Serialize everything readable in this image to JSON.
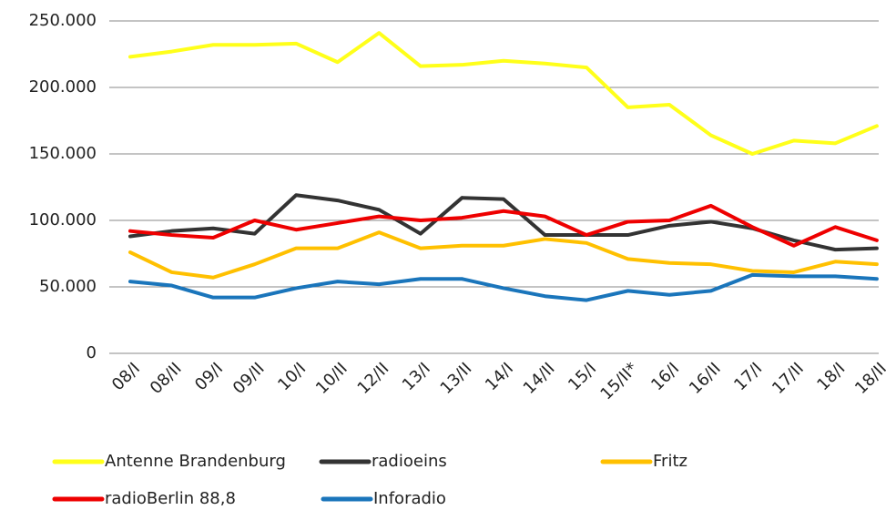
{
  "chart_data": {
    "type": "line",
    "categories": [
      "08/I",
      "08/II",
      "09/I",
      "09/II",
      "10/I",
      "10/II",
      "12/II",
      "13/I",
      "13/II",
      "14/I",
      "14/II",
      "15/I",
      "15/II*",
      "16/I",
      "16/II",
      "17/I",
      "17/II",
      "18/I",
      "18/II"
    ],
    "series": [
      {
        "name": "Antenne Brandenburg",
        "color": "#ffff1a",
        "values": [
          223000,
          227000,
          232000,
          232000,
          233000,
          219000,
          241000,
          216000,
          217000,
          220000,
          218000,
          215000,
          185000,
          187000,
          164000,
          150000,
          160000,
          158000,
          171000
        ]
      },
      {
        "name": "radioeins",
        "color": "#333333",
        "values": [
          88000,
          92000,
          94000,
          90000,
          119000,
          115000,
          108000,
          90000,
          117000,
          116000,
          89000,
          89000,
          89000,
          96000,
          99000,
          94000,
          85000,
          78000,
          79000
        ]
      },
      {
        "name": "Fritz",
        "color": "#ffc000",
        "values": [
          76000,
          61000,
          57000,
          67000,
          79000,
          79000,
          91000,
          79000,
          81000,
          81000,
          86000,
          83000,
          71000,
          68000,
          67000,
          62000,
          61000,
          69000,
          67000
        ]
      },
      {
        "name": "radioBerlin 88,8",
        "color": "#ee0000",
        "values": [
          92000,
          89000,
          87000,
          100000,
          93000,
          98000,
          103000,
          100000,
          102000,
          107000,
          103000,
          89000,
          99000,
          100000,
          111000,
          95000,
          81000,
          95000,
          85000
        ]
      },
      {
        "name": "Inforadio",
        "color": "#1a75bb",
        "values": [
          54000,
          51000,
          42000,
          42000,
          49000,
          54000,
          52000,
          56000,
          56000,
          49000,
          43000,
          40000,
          47000,
          44000,
          47000,
          59000,
          58000,
          58000,
          56000
        ]
      }
    ],
    "ylim": [
      0,
      250000
    ],
    "yticks": [
      0,
      {
        "value": 50000,
        "label": "50.000"
      },
      {
        "value": 100000,
        "label": "100.000"
      },
      {
        "value": 150000,
        "label": "150.000"
      },
      {
        "value": 200000,
        "label": "200.000"
      },
      {
        "value": 250000,
        "label": "250.000"
      }
    ],
    "grid": true,
    "legend": "bottom"
  }
}
